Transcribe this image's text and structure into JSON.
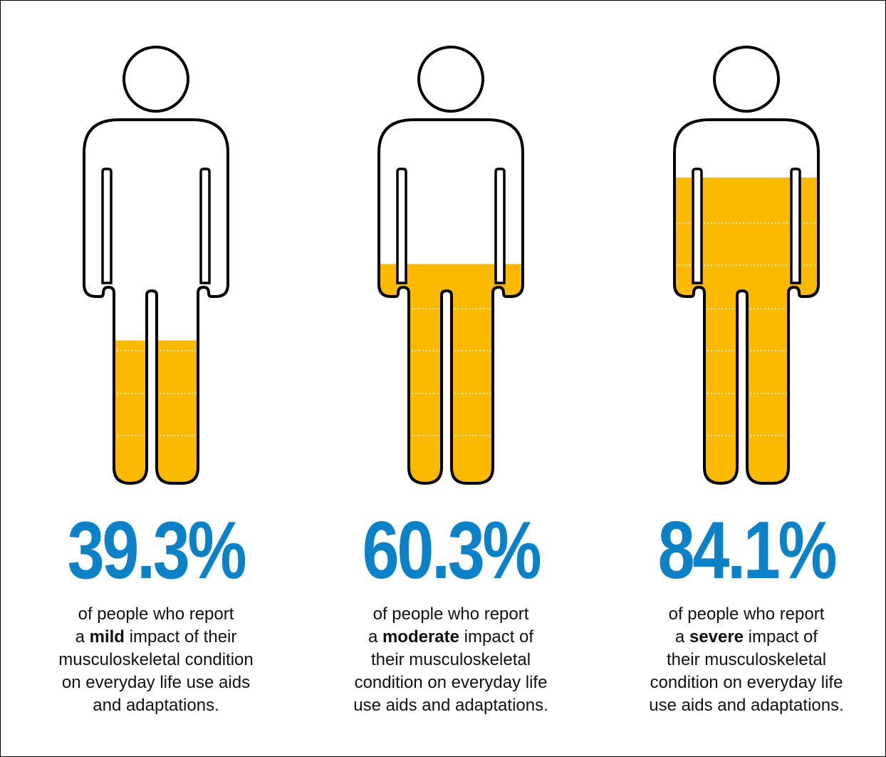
{
  "chart_data": {
    "type": "bar",
    "categories": [
      "mild",
      "moderate",
      "severe"
    ],
    "values": [
      39.3,
      60.3,
      84.1
    ],
    "unit": "%",
    "items": [
      {
        "value": 39.3,
        "label": "39.3%",
        "caption_lines": [
          {
            "before": "of people who report",
            "bold": "",
            "after": ""
          },
          {
            "before": "a ",
            "bold": "mild",
            "after": " impact of their"
          },
          {
            "before": "musculoskeletal condition",
            "bold": "",
            "after": ""
          },
          {
            "before": "on everyday life use aids",
            "bold": "",
            "after": ""
          },
          {
            "before": "and adaptations.",
            "bold": "",
            "after": ""
          }
        ]
      },
      {
        "value": 60.3,
        "label": "60.3%",
        "caption_lines": [
          {
            "before": "of people who report",
            "bold": "",
            "after": ""
          },
          {
            "before": "a ",
            "bold": "moderate",
            "after": " impact of"
          },
          {
            "before": "their musculoskeletal",
            "bold": "",
            "after": ""
          },
          {
            "before": "condition on everyday life",
            "bold": "",
            "after": ""
          },
          {
            "before": "use aids and adaptations.",
            "bold": "",
            "after": ""
          }
        ]
      },
      {
        "value": 84.1,
        "label": "84.1%",
        "caption_lines": [
          {
            "before": "of people who report",
            "bold": "",
            "after": ""
          },
          {
            "before": "a ",
            "bold": "severe",
            "after": " impact of"
          },
          {
            "before": "their musculoskeletal",
            "bold": "",
            "after": ""
          },
          {
            "before": "condition on everyday life",
            "bold": "",
            "after": ""
          },
          {
            "before": "use aids and adaptations.",
            "bold": "",
            "after": ""
          }
        ]
      }
    ]
  },
  "colors": {
    "fill": "#fbb900",
    "value_text": "#0b82c8",
    "outline": "#000000",
    "dotted_lines": "#ffffff"
  }
}
